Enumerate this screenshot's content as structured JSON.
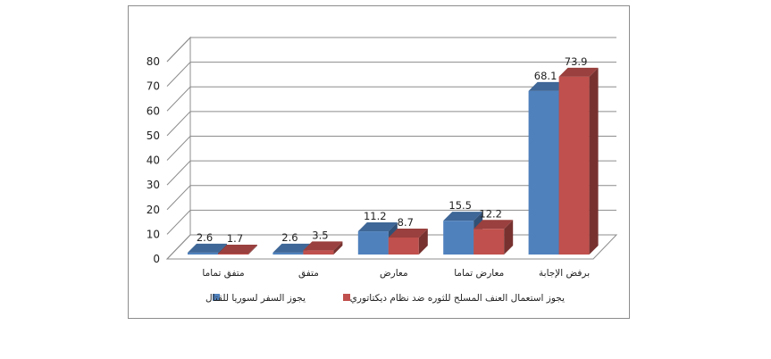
{
  "chart_data": {
    "type": "bar",
    "categories": [
      "متفق تماما",
      "متفق",
      "معارض",
      "معارض تماما",
      "برفض الإجابة"
    ],
    "series": [
      {
        "name": "يجوز السفر لسوريا للقتال",
        "values": [
          2.6,
          2.6,
          11.2,
          15.5,
          68.1
        ],
        "color": "#4f81bd"
      },
      {
        "name": "يجوز استعمال العنف المسلح للثوره ضد نظام ديكتاتوري",
        "values": [
          1.7,
          3.5,
          8.7,
          12.2,
          73.9
        ],
        "color": "#c0504d"
      }
    ],
    "yticks": [
      "0",
      "10",
      "20",
      "30",
      "40",
      "50",
      "60",
      "70",
      "80"
    ],
    "ylim": [
      0,
      80
    ],
    "grid": true,
    "legend": "bottom",
    "title": "",
    "xlabel": "",
    "ylabel": ""
  }
}
